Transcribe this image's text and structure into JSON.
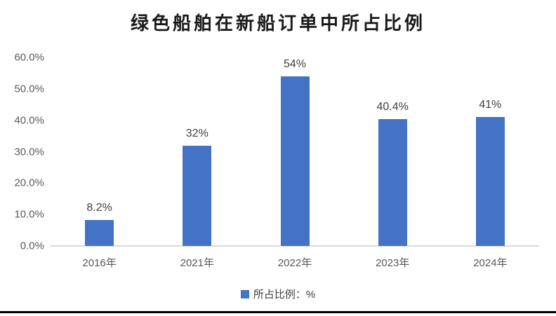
{
  "title": "绿色船舶在新船订单中所占比例",
  "colors": {
    "bar": "#4472c4",
    "axis_line": "#d9d9d9",
    "axis_text": "#595959",
    "data_label_text": "#404040",
    "title_text": "#1a1a1a",
    "bottom_rule": "#000000",
    "background": "#ffffff"
  },
  "legend": {
    "swatch_color": "#4472c4",
    "label": "所占比例：%"
  },
  "chart_data": {
    "type": "bar",
    "title": "绿色船舶在新船订单中所占比例",
    "categories": [
      "2016年",
      "2021年",
      "2022年",
      "2023年",
      "2024年"
    ],
    "values": [
      8.2,
      32,
      54,
      40.4,
      41
    ],
    "value_labels": [
      "8.2%",
      "32%",
      "54%",
      "40.4%",
      "41%"
    ],
    "series": [
      {
        "name": "所占比例：%",
        "values": [
          8.2,
          32,
          54,
          40.4,
          41
        ]
      }
    ],
    "xlabel": "",
    "ylabel": "",
    "ylim": [
      0,
      60
    ],
    "ytick_step": 10,
    "ytick_labels": [
      "0.0%",
      "10.0%",
      "20.0%",
      "30.0%",
      "40.0%",
      "50.0%",
      "60.0%"
    ],
    "grid": false,
    "legend_position": "bottom",
    "legend_entries": [
      "所占比例：%"
    ]
  }
}
